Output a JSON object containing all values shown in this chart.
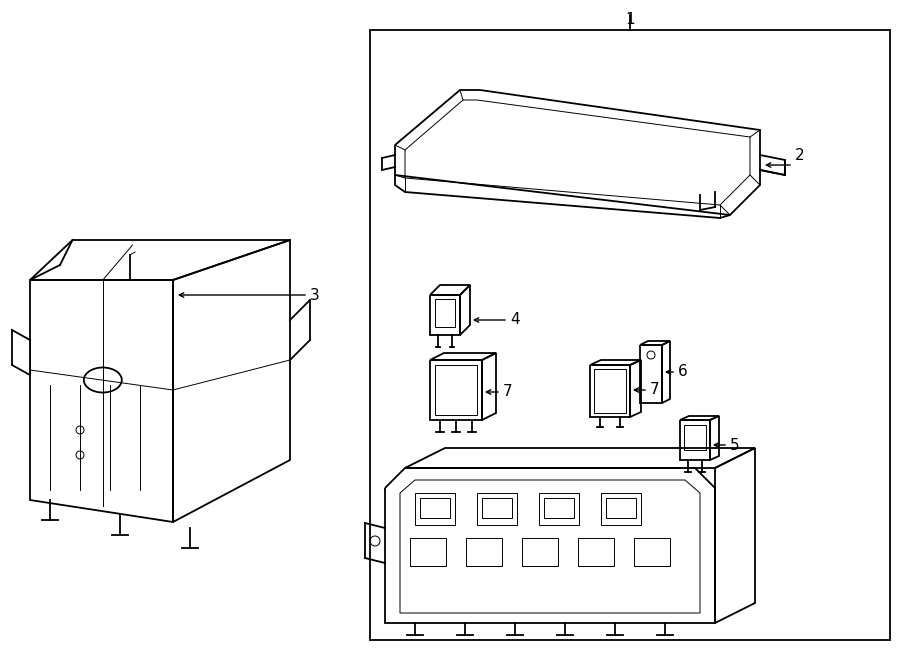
{
  "bg": "#ffffff",
  "lc": "#000000",
  "lw": 1.3,
  "tlw": 0.7,
  "fw": 9.0,
  "fh": 6.61
}
